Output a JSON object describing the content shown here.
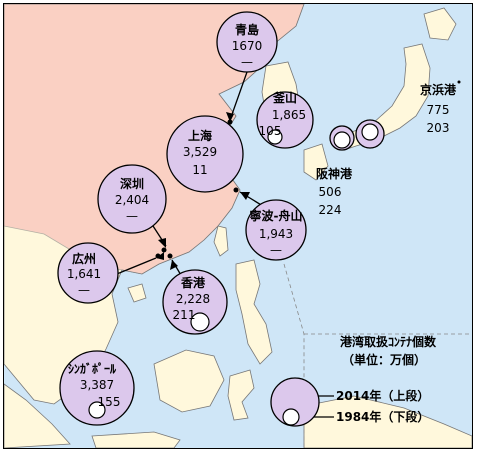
{
  "ports": [
    {
      "id": "qingdao",
      "name": "青島",
      "v2014": "1670",
      "v1984": ""
    },
    {
      "id": "busan",
      "name": "釜山",
      "v2014": "1,865",
      "v1984": "105"
    },
    {
      "id": "keihin",
      "name": "京浜港",
      "v2014": "775",
      "v1984": "203"
    },
    {
      "id": "hanshin",
      "name": "阪神港",
      "v2014": "506",
      "v1984": "224"
    },
    {
      "id": "shanghai",
      "name": "上海",
      "v2014": "3,529",
      "v1984": "11"
    },
    {
      "id": "shenzhen",
      "name": "深圳",
      "v2014": "2,404",
      "v1984": "—"
    },
    {
      "id": "ningbo",
      "name": "寧波-舟山",
      "v2014": "1,943",
      "v1984": "—"
    },
    {
      "id": "guangzhou",
      "name": "広州",
      "v2014": "1,641",
      "v1984": "—"
    },
    {
      "id": "hongkong",
      "name": "香港",
      "v2014": "2,228",
      "v1984": "211"
    },
    {
      "id": "singapore",
      "name": "ｼﾝｶﾞﾎﾟｰﾙ",
      "v2014": "3,387",
      "v1984": "155"
    }
  ],
  "legend": {
    "title": "港湾取扱ｺﾝﾃﾅ個数",
    "unit": "（単位：万個）",
    "item_2014": "2014年（上段）",
    "item_1984": "1984年（下段）"
  },
  "colors": {
    "sea": "#cfe6f7",
    "land": "#fff8dc",
    "circle_fill": "#dcc8ec",
    "china_land": "#f6b0b0",
    "small_circle": "#ffffff"
  }
}
